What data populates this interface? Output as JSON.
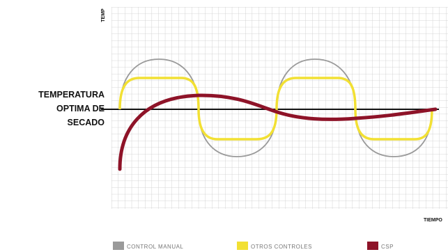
{
  "axis_labels": {
    "y": "TEMP",
    "x": "TIEMPO"
  },
  "annotation": [
    "TEMPERATURA",
    "OPTIMA DE",
    "SECADO"
  ],
  "legend": [
    {
      "label": "CONTROL MANUAL",
      "color": "#9a9a9a"
    },
    {
      "label": "OTROS CONTROLES",
      "color": "#f2e033"
    },
    {
      "label": "CSP",
      "color": "#8e1328"
    }
  ]
}
